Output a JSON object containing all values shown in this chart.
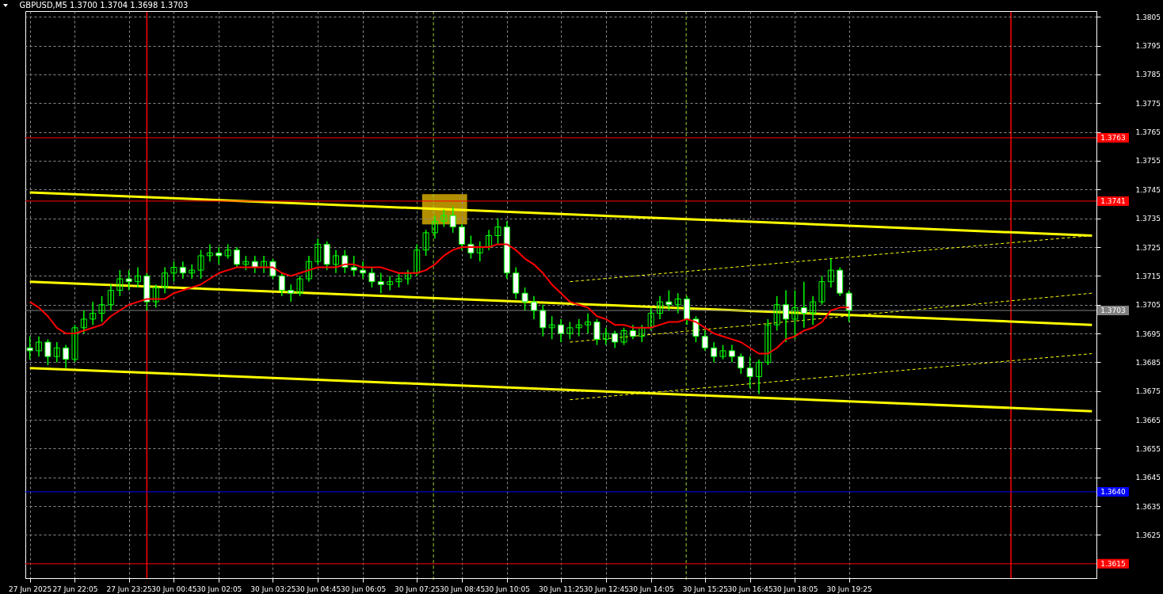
{
  "chart_data": {
    "type": "candlestick",
    "title": "GBPUSD,M5  1.3700 1.3704 1.3698 1.3703",
    "color": "#00ff00",
    "categories": [
      "27 Jun 2025",
      null,
      null,
      null,
      null,
      "27 Jun 22:05",
      null,
      null,
      null,
      null,
      null,
      "27 Jun 23:25",
      null,
      null,
      null,
      null,
      "30 Jun 00:45",
      null,
      null,
      null,
      null,
      "30 Jun 02:05",
      null,
      null,
      null,
      null,
      null,
      "30 Jun 03:25",
      null,
      null,
      null,
      null,
      "30 Jun 04:45",
      null,
      null,
      null,
      null,
      "30 Jun 06:05",
      null,
      null,
      null,
      null,
      null,
      "30 Jun 07:25",
      null,
      null,
      null,
      null,
      "30 Jun 08:45",
      null,
      null,
      null,
      null,
      "30 Jun 10:05",
      null,
      null,
      null,
      null,
      null,
      "30 Jun 11:25",
      null,
      null,
      null,
      null,
      "30 Jun 12:45",
      null,
      null,
      null,
      null,
      "30 Jun 14:05",
      null,
      null,
      null,
      null,
      null,
      "30 Jun 15:25",
      null,
      null,
      null,
      null,
      "30 Jun 16:45",
      null,
      null,
      null,
      null,
      "30 Jun 18:05",
      null,
      null,
      null,
      null,
      null,
      "30 Jun 19:25",
      null,
      null,
      null,
      null,
      null,
      null,
      null,
      null,
      null,
      null,
      null,
      null,
      null,
      null,
      null,
      null,
      null,
      null,
      null,
      null,
      null,
      null,
      null,
      null,
      null,
      null,
      null
    ],
    "ohlc": [
      [
        1.369,
        1.3694,
        1.3686,
        1.3689
      ],
      [
        1.3689,
        1.3694,
        1.3687,
        1.3692
      ],
      [
        1.3692,
        1.3693,
        1.3684,
        1.3687
      ],
      [
        1.3687,
        1.3692,
        1.3685,
        1.369
      ],
      [
        1.369,
        1.3691,
        1.3683,
        1.3686
      ],
      [
        1.3686,
        1.3698,
        1.3685,
        1.3697
      ],
      [
        1.3697,
        1.3703,
        1.3695,
        1.37
      ],
      [
        1.37,
        1.3706,
        1.3698,
        1.3702
      ],
      [
        1.3702,
        1.3708,
        1.3699,
        1.3705
      ],
      [
        1.3705,
        1.3712,
        1.3703,
        1.371
      ],
      [
        1.371,
        1.3717,
        1.3708,
        1.3714
      ],
      [
        1.3714,
        1.3717,
        1.371,
        1.3713
      ],
      [
        1.3713,
        1.3718,
        1.3711,
        1.3715
      ],
      [
        1.3715,
        1.3716,
        1.3703,
        1.3706
      ],
      [
        1.3706,
        1.3712,
        1.3704,
        1.3711
      ],
      [
        1.3711,
        1.3718,
        1.3709,
        1.3716
      ],
      [
        1.3716,
        1.372,
        1.3713,
        1.3718
      ],
      [
        1.3718,
        1.372,
        1.3714,
        1.3716
      ],
      [
        1.3716,
        1.3719,
        1.3714,
        1.3717
      ],
      [
        1.3717,
        1.3724,
        1.3714,
        1.3722
      ],
      [
        1.3722,
        1.3726,
        1.372,
        1.3723
      ],
      [
        1.3723,
        1.3725,
        1.3719,
        1.3722
      ],
      [
        1.3722,
        1.3726,
        1.3721,
        1.3724
      ],
      [
        1.3724,
        1.3725,
        1.3718,
        1.3719
      ],
      [
        1.3719,
        1.3722,
        1.3717,
        1.372
      ],
      [
        1.372,
        1.3722,
        1.3716,
        1.3718
      ],
      [
        1.3718,
        1.3722,
        1.3716,
        1.372
      ],
      [
        1.372,
        1.3721,
        1.3714,
        1.3715
      ],
      [
        1.3715,
        1.3716,
        1.3708,
        1.371
      ],
      [
        1.371,
        1.3712,
        1.3706,
        1.3709
      ],
      [
        1.3709,
        1.3715,
        1.3708,
        1.3714
      ],
      [
        1.3714,
        1.3722,
        1.3713,
        1.372
      ],
      [
        1.372,
        1.3728,
        1.3719,
        1.3726
      ],
      [
        1.3726,
        1.3727,
        1.3717,
        1.3719
      ],
      [
        1.3719,
        1.3724,
        1.3716,
        1.3722
      ],
      [
        1.3722,
        1.3724,
        1.3716,
        1.3718
      ],
      [
        1.3718,
        1.3722,
        1.3715,
        1.3717
      ],
      [
        1.3717,
        1.372,
        1.3714,
        1.3716
      ],
      [
        1.3716,
        1.3718,
        1.3711,
        1.3713
      ],
      [
        1.3713,
        1.3716,
        1.3709,
        1.3712
      ],
      [
        1.3712,
        1.3715,
        1.371,
        1.3713
      ],
      [
        1.3713,
        1.3716,
        1.3711,
        1.3714
      ],
      [
        1.3714,
        1.3717,
        1.3712,
        1.3716
      ],
      [
        1.3716,
        1.3726,
        1.3715,
        1.3724
      ],
      [
        1.3724,
        1.3731,
        1.3722,
        1.373
      ],
      [
        1.373,
        1.3736,
        1.3728,
        1.3734
      ],
      [
        1.3734,
        1.3738,
        1.3732,
        1.3736
      ],
      [
        1.3736,
        1.3739,
        1.373,
        1.3732
      ],
      [
        1.3732,
        1.3733,
        1.3724,
        1.3726
      ],
      [
        1.3726,
        1.3729,
        1.3721,
        1.3723
      ],
      [
        1.3723,
        1.3727,
        1.372,
        1.3725
      ],
      [
        1.3725,
        1.3731,
        1.3724,
        1.3729
      ],
      [
        1.3729,
        1.3735,
        1.3726,
        1.3732
      ],
      [
        1.3732,
        1.3734,
        1.3714,
        1.3716
      ],
      [
        1.3716,
        1.3718,
        1.3707,
        1.3709
      ],
      [
        1.3709,
        1.3711,
        1.3703,
        1.3706
      ],
      [
        1.3706,
        1.3708,
        1.37,
        1.3703
      ],
      [
        1.3703,
        1.3705,
        1.3694,
        1.3697
      ],
      [
        1.3697,
        1.3701,
        1.3693,
        1.3698
      ],
      [
        1.3698,
        1.37,
        1.3692,
        1.3695
      ],
      [
        1.3695,
        1.3699,
        1.3693,
        1.3697
      ],
      [
        1.3697,
        1.37,
        1.3694,
        1.3698
      ],
      [
        1.3698,
        1.3702,
        1.3695,
        1.3699
      ],
      [
        1.3699,
        1.37,
        1.3691,
        1.3693
      ],
      [
        1.3693,
        1.3697,
        1.3691,
        1.3695
      ],
      [
        1.3695,
        1.3696,
        1.369,
        1.3692
      ],
      [
        1.3692,
        1.3697,
        1.3691,
        1.3696
      ],
      [
        1.3696,
        1.3698,
        1.3693,
        1.3694
      ],
      [
        1.3694,
        1.3698,
        1.3692,
        1.3697
      ],
      [
        1.3697,
        1.3704,
        1.3696,
        1.3702
      ],
      [
        1.3702,
        1.3708,
        1.37,
        1.3706
      ],
      [
        1.3706,
        1.371,
        1.3703,
        1.3705
      ],
      [
        1.3705,
        1.3709,
        1.3702,
        1.3707
      ],
      [
        1.3707,
        1.3708,
        1.3698,
        1.37
      ],
      [
        1.37,
        1.3701,
        1.3692,
        1.3694
      ],
      [
        1.3694,
        1.3696,
        1.3689,
        1.369
      ],
      [
        1.369,
        1.3692,
        1.3685,
        1.3687
      ],
      [
        1.3687,
        1.3691,
        1.3686,
        1.3689
      ],
      [
        1.3689,
        1.3691,
        1.3685,
        1.3687
      ],
      [
        1.3687,
        1.3688,
        1.3681,
        1.3683
      ],
      [
        1.3683,
        1.3687,
        1.3676,
        1.368
      ],
      [
        1.368,
        1.3686,
        1.3674,
        1.3685
      ],
      [
        1.3685,
        1.37,
        1.3684,
        1.3698
      ],
      [
        1.3698,
        1.3708,
        1.3696,
        1.3705
      ],
      [
        1.3705,
        1.371,
        1.3692,
        1.37
      ],
      [
        1.37,
        1.371,
        1.3693,
        1.3704
      ],
      [
        1.3704,
        1.3713,
        1.3697,
        1.3702
      ],
      [
        1.3702,
        1.3708,
        1.3698,
        1.3706
      ],
      [
        1.3706,
        1.3715,
        1.3705,
        1.3713
      ],
      [
        1.3713,
        1.3721,
        1.3711,
        1.3717
      ],
      [
        1.3717,
        1.3718,
        1.3708,
        1.3709
      ],
      [
        1.3709,
        1.371,
        1.3699,
        1.3703
      ],
      null,
      null,
      null,
      null,
      null,
      null,
      null,
      null,
      null,
      null,
      null,
      null,
      null,
      null,
      null,
      null,
      null,
      null,
      null,
      null,
      null,
      null,
      null,
      null,
      null,
      null,
      null
    ],
    "series": [
      {
        "type": "line",
        "color": "#ff0000",
        "line_style": "solid",
        "values": [
          1.3706,
          1.3704,
          1.3701,
          1.3697,
          1.3695,
          1.3695,
          1.3696,
          1.3697,
          1.3698,
          1.3701,
          1.3703,
          1.3705,
          1.3706,
          1.3707,
          1.3707,
          1.3707,
          1.3709,
          1.371,
          1.3711,
          1.3712,
          1.3714,
          1.3716,
          1.3717,
          1.3718,
          1.3718,
          1.3718,
          1.3718,
          1.3718,
          1.3716,
          1.3715,
          1.3716,
          1.3717,
          1.3718,
          1.3718,
          1.3718,
          1.3719,
          1.3719,
          1.3718,
          1.3718,
          1.3718,
          1.3717,
          1.3716,
          1.3716,
          1.3716,
          1.3717,
          1.3719,
          1.3722,
          1.3724,
          1.3725,
          1.3725,
          1.3725,
          1.3725,
          1.3726,
          1.3726,
          1.3724,
          1.3721,
          1.3719,
          1.3716,
          1.3712,
          1.3709,
          1.3706,
          1.3705,
          1.3704,
          1.3701,
          1.37,
          1.3698,
          1.3698,
          1.3697,
          1.3697,
          1.3697,
          1.3698,
          1.3699,
          1.3699,
          1.37,
          1.3699,
          1.3697,
          1.3695,
          1.3694,
          1.3693,
          1.3692,
          1.369,
          1.3688,
          1.3688,
          1.369,
          1.3693,
          1.3694,
          1.3696,
          1.3697,
          1.3699,
          1.3703,
          1.3704,
          1.3704,
          null,
          null,
          null,
          null,
          null,
          null,
          null,
          null,
          null,
          null,
          null,
          null,
          null,
          null,
          null,
          null,
          null,
          null,
          null,
          null,
          null,
          null,
          null,
          null,
          null,
          null,
          null
        ]
      },
      {
        "type": "line",
        "color": "#ffff00",
        "line_style": "solid",
        "values": [
          1.3744,
          null,
          null,
          null,
          null,
          null,
          null,
          null,
          null,
          null,
          null,
          null,
          null,
          null,
          null,
          null,
          null,
          null,
          null,
          null,
          null,
          null,
          null,
          null,
          null,
          null,
          null,
          null,
          null,
          null,
          null,
          null,
          null,
          null,
          null,
          null,
          null,
          null,
          null,
          null,
          null,
          null,
          null,
          null,
          null,
          null,
          null,
          null,
          null,
          null,
          null,
          null,
          null,
          null,
          null,
          null,
          null,
          null,
          null,
          null,
          null,
          null,
          null,
          null,
          null,
          null,
          null,
          null,
          null,
          null,
          null,
          null,
          null,
          null,
          null,
          null,
          null,
          null,
          null,
          null,
          null,
          null,
          null,
          null,
          null,
          null,
          null,
          null,
          null,
          null,
          null,
          null,
          null,
          null,
          null,
          null,
          null,
          null,
          null,
          null,
          null,
          null,
          null,
          null,
          null,
          null,
          null,
          null,
          null,
          null,
          null,
          null,
          null,
          null,
          null,
          null,
          null,
          null,
          1.3729
        ]
      },
      {
        "type": "line",
        "color": "#ffff00",
        "line_style": "solid",
        "values": [
          1.3713,
          null,
          null,
          null,
          null,
          null,
          null,
          null,
          null,
          null,
          null,
          null,
          null,
          null,
          null,
          null,
          null,
          null,
          null,
          null,
          null,
          null,
          null,
          null,
          null,
          null,
          null,
          null,
          null,
          null,
          null,
          null,
          null,
          null,
          null,
          null,
          null,
          null,
          null,
          null,
          null,
          null,
          null,
          null,
          null,
          null,
          null,
          null,
          null,
          null,
          null,
          null,
          null,
          null,
          null,
          null,
          null,
          null,
          null,
          null,
          null,
          null,
          null,
          null,
          null,
          null,
          null,
          null,
          null,
          null,
          null,
          null,
          null,
          null,
          null,
          null,
          null,
          null,
          null,
          null,
          null,
          null,
          null,
          null,
          null,
          null,
          null,
          null,
          null,
          null,
          null,
          null,
          null,
          null,
          null,
          null,
          null,
          null,
          null,
          null,
          null,
          null,
          null,
          null,
          null,
          null,
          null,
          null,
          null,
          null,
          null,
          null,
          null,
          null,
          null,
          null,
          null,
          null,
          1.3698
        ]
      },
      {
        "type": "line",
        "color": "#ffff00",
        "line_style": "solid",
        "values": [
          1.3683,
          null,
          null,
          null,
          null,
          null,
          null,
          null,
          null,
          null,
          null,
          null,
          null,
          null,
          null,
          null,
          null,
          null,
          null,
          null,
          null,
          null,
          null,
          null,
          null,
          null,
          null,
          null,
          null,
          null,
          null,
          null,
          null,
          null,
          null,
          null,
          null,
          null,
          null,
          null,
          null,
          null,
          null,
          null,
          null,
          null,
          null,
          null,
          null,
          null,
          null,
          null,
          null,
          null,
          null,
          null,
          null,
          null,
          null,
          null,
          null,
          null,
          null,
          null,
          null,
          null,
          null,
          null,
          null,
          null,
          null,
          null,
          null,
          null,
          null,
          null,
          null,
          null,
          null,
          null,
          null,
          null,
          null,
          null,
          null,
          null,
          null,
          null,
          null,
          null,
          null,
          null,
          null,
          null,
          null,
          null,
          null,
          null,
          null,
          null,
          null,
          null,
          null,
          null,
          null,
          null,
          null,
          null,
          null,
          null,
          null,
          null,
          null,
          null,
          null,
          null,
          null,
          null,
          1.3668
        ]
      },
      {
        "type": "line",
        "color": "#ffff00",
        "line_style": "dashed",
        "values": [
          null,
          null,
          null,
          null,
          null,
          null,
          null,
          null,
          null,
          null,
          null,
          null,
          null,
          null,
          null,
          null,
          null,
          null,
          null,
          null,
          null,
          null,
          null,
          null,
          null,
          null,
          null,
          null,
          null,
          null,
          null,
          null,
          null,
          null,
          null,
          null,
          null,
          null,
          null,
          null,
          null,
          null,
          null,
          null,
          null,
          null,
          null,
          null,
          null,
          null,
          null,
          null,
          null,
          null,
          null,
          null,
          null,
          null,
          null,
          null,
          1.3713,
          null,
          null,
          null,
          null,
          null,
          null,
          null,
          null,
          null,
          null,
          null,
          null,
          null,
          null,
          null,
          null,
          null,
          null,
          null,
          null,
          null,
          null,
          null,
          null,
          null,
          null,
          null,
          null,
          null,
          null,
          null,
          null,
          null,
          null,
          null,
          null,
          null,
          null,
          null,
          null,
          null,
          null,
          null,
          null,
          null,
          null,
          null,
          null,
          null,
          null,
          null,
          null,
          null,
          null,
          null,
          null,
          null,
          1.3729
        ]
      },
      {
        "type": "line",
        "color": "#ffff00",
        "line_style": "dashed",
        "values": [
          null,
          null,
          null,
          null,
          null,
          null,
          null,
          null,
          null,
          null,
          null,
          null,
          null,
          null,
          null,
          null,
          null,
          null,
          null,
          null,
          null,
          null,
          null,
          null,
          null,
          null,
          null,
          null,
          null,
          null,
          null,
          null,
          null,
          null,
          null,
          null,
          null,
          null,
          null,
          null,
          null,
          null,
          null,
          null,
          null,
          null,
          null,
          null,
          null,
          null,
          null,
          null,
          null,
          null,
          null,
          null,
          null,
          null,
          null,
          null,
          1.3692,
          null,
          null,
          null,
          null,
          null,
          null,
          null,
          null,
          null,
          null,
          null,
          null,
          null,
          null,
          null,
          null,
          null,
          null,
          null,
          null,
          null,
          null,
          null,
          null,
          null,
          null,
          null,
          null,
          null,
          null,
          null,
          null,
          null,
          null,
          null,
          null,
          null,
          null,
          null,
          null,
          null,
          null,
          null,
          null,
          null,
          null,
          null,
          null,
          null,
          null,
          null,
          null,
          null,
          null,
          null,
          null,
          null,
          1.3709
        ]
      },
      {
        "type": "line",
        "color": "#ffff00",
        "line_style": "dashed",
        "values": [
          null,
          null,
          null,
          null,
          null,
          null,
          null,
          null,
          null,
          null,
          null,
          null,
          null,
          null,
          null,
          null,
          null,
          null,
          null,
          null,
          null,
          null,
          null,
          null,
          null,
          null,
          null,
          null,
          null,
          null,
          null,
          null,
          null,
          null,
          null,
          null,
          null,
          null,
          null,
          null,
          null,
          null,
          null,
          null,
          null,
          null,
          null,
          null,
          null,
          null,
          null,
          null,
          null,
          null,
          null,
          null,
          null,
          null,
          null,
          null,
          1.3672,
          null,
          null,
          null,
          null,
          null,
          null,
          null,
          null,
          null,
          null,
          null,
          null,
          null,
          null,
          null,
          null,
          null,
          null,
          null,
          null,
          null,
          null,
          null,
          null,
          null,
          null,
          null,
          null,
          null,
          null,
          null,
          null,
          null,
          null,
          null,
          null,
          null,
          null,
          null,
          null,
          null,
          null,
          null,
          null,
          null,
          null,
          null,
          null,
          null,
          null,
          null,
          null,
          null,
          null,
          null,
          null,
          null,
          1.3688
        ]
      }
    ],
    "ref_lines": [
      {
        "axis": "y",
        "value": 1.3763,
        "label": "1.3763",
        "color": "#ff0000"
      },
      {
        "axis": "y",
        "value": 1.3741,
        "label": "1.3741",
        "color": "#ff0000"
      },
      {
        "axis": "y",
        "value": 1.3703,
        "label": "1.3703",
        "color": "#808080"
      },
      {
        "axis": "y",
        "value": 1.364,
        "label": "1.3640",
        "color": "#0000ff"
      },
      {
        "axis": "y",
        "value": 1.3615,
        "label": "1.3615",
        "color": "#ff0000"
      }
    ],
    "ylim": [
      1.361,
      1.3807
    ],
    "yticks": [
      1.3625,
      1.3635,
      1.3645,
      1.3655,
      1.3665,
      1.3675,
      1.3685,
      1.3695,
      1.3705,
      1.3715,
      1.3725,
      1.3735,
      1.3745,
      1.3755,
      1.3765,
      1.3775,
      1.3785,
      1.3795,
      1.3805
    ],
    "grid": true
  }
}
